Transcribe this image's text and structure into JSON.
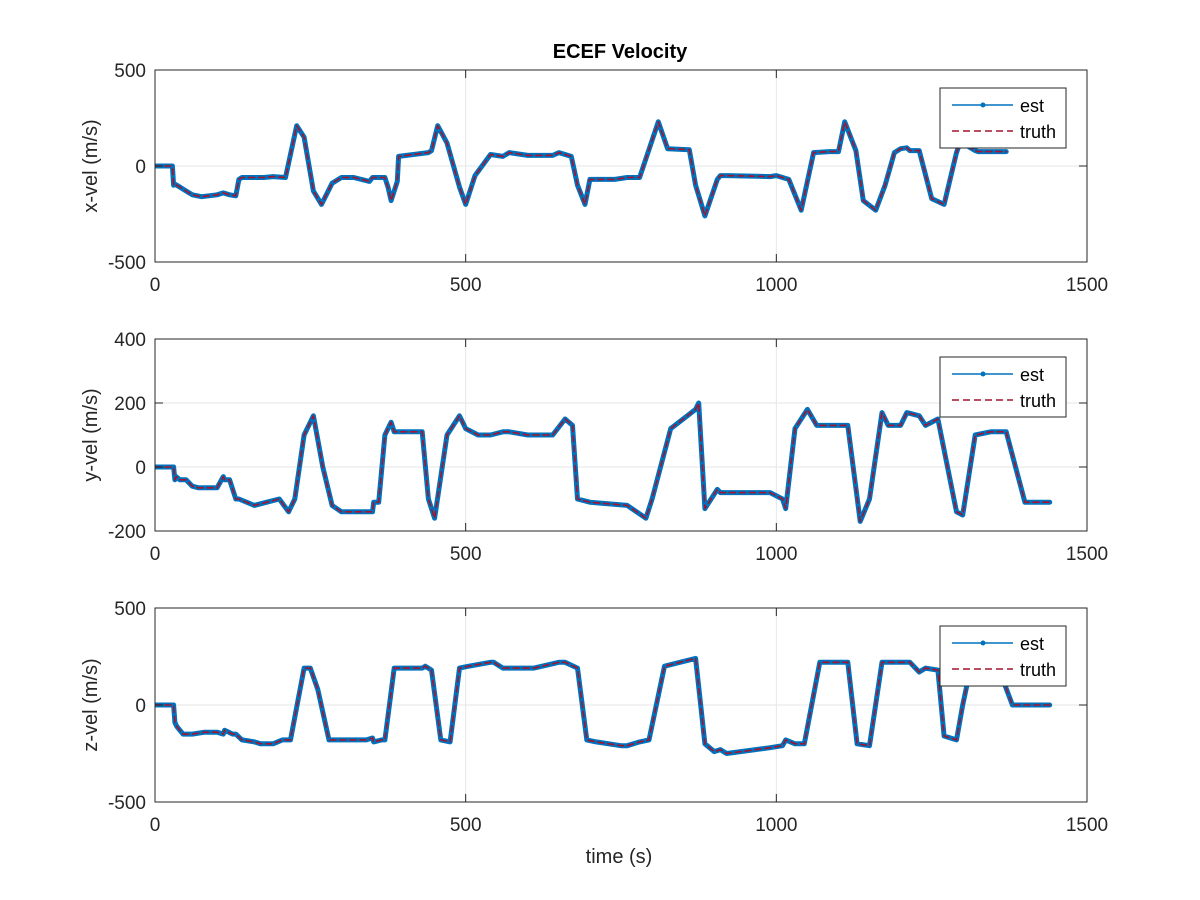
{
  "figure_title": "ECEF Velocity",
  "legend": {
    "est": "est",
    "truth": "truth"
  },
  "colors": {
    "est": "#0072BD",
    "truth": "#A2142F",
    "axis": "#262626",
    "grid": "#e6e6e6"
  },
  "chart_data": [
    {
      "type": "line",
      "title": "ECEF Velocity",
      "xlabel": "",
      "ylabel": "x-vel (m/s)",
      "xlim": [
        0,
        1500
      ],
      "ylim": [
        -500,
        500
      ],
      "xticks": [
        0,
        500,
        1000,
        1500
      ],
      "yticks": [
        -500,
        0,
        500
      ],
      "grid": true,
      "legend_position": "top-right",
      "series": [
        {
          "name": "est",
          "x": [
            0,
            28,
            30,
            32,
            40,
            50,
            60,
            75,
            100,
            110,
            120,
            130,
            135,
            140,
            175,
            190,
            210,
            228,
            240,
            255,
            268,
            285,
            300,
            320,
            345,
            350,
            370,
            375,
            380,
            390,
            392,
            440,
            445,
            455,
            470,
            490,
            500,
            515,
            540,
            560,
            570,
            600,
            640,
            650,
            660,
            670,
            680,
            692,
            700,
            740,
            760,
            780,
            810,
            825,
            860,
            870,
            885,
            905,
            910,
            920,
            990,
            1000,
            1010,
            1020,
            1040,
            1060,
            1085,
            1100,
            1110,
            1128,
            1140,
            1160,
            1175,
            1190,
            1200,
            1210,
            1215,
            1230,
            1250,
            1270,
            1290,
            1300,
            1310,
            1320,
            1325,
            1370
          ],
          "y": [
            0,
            0,
            -100,
            -95,
            -110,
            -130,
            -150,
            -160,
            -150,
            -140,
            -150,
            -155,
            -70,
            -60,
            -60,
            -55,
            -60,
            210,
            150,
            -130,
            -200,
            -90,
            -60,
            -60,
            -80,
            -60,
            -60,
            -110,
            -180,
            -80,
            50,
            70,
            80,
            210,
            120,
            -110,
            -200,
            -50,
            60,
            50,
            70,
            55,
            55,
            70,
            60,
            50,
            -100,
            -200,
            -70,
            -70,
            -60,
            -60,
            230,
            90,
            85,
            -100,
            -260,
            -70,
            -50,
            -50,
            -55,
            -50,
            -60,
            -70,
            -230,
            70,
            75,
            75,
            230,
            80,
            -180,
            -230,
            -100,
            70,
            90,
            95,
            80,
            80,
            -170,
            -200,
            70,
            160,
            100,
            80,
            75,
            75
          ]
        },
        {
          "name": "truth",
          "x": [
            0,
            28,
            30,
            32,
            40,
            50,
            60,
            75,
            100,
            110,
            120,
            130,
            135,
            140,
            175,
            190,
            210,
            228,
            240,
            255,
            268,
            285,
            300,
            320,
            345,
            350,
            370,
            375,
            380,
            390,
            392,
            440,
            445,
            455,
            470,
            490,
            500,
            515,
            540,
            560,
            570,
            600,
            640,
            650,
            660,
            670,
            680,
            692,
            700,
            740,
            760,
            780,
            810,
            825,
            860,
            870,
            885,
            905,
            910,
            920,
            990,
            1000,
            1010,
            1020,
            1040,
            1060,
            1085,
            1100,
            1110,
            1128,
            1140,
            1160,
            1175,
            1190,
            1200,
            1210,
            1215,
            1230,
            1250,
            1270,
            1290,
            1300,
            1310,
            1320,
            1325,
            1370
          ],
          "y": [
            0,
            0,
            -100,
            -95,
            -110,
            -130,
            -150,
            -160,
            -150,
            -140,
            -150,
            -155,
            -70,
            -60,
            -60,
            -55,
            -60,
            210,
            150,
            -130,
            -200,
            -90,
            -60,
            -60,
            -80,
            -60,
            -60,
            -110,
            -180,
            -80,
            50,
            70,
            80,
            210,
            120,
            -110,
            -200,
            -50,
            60,
            50,
            70,
            55,
            55,
            70,
            60,
            50,
            -100,
            -200,
            -70,
            -70,
            -60,
            -60,
            230,
            90,
            85,
            -100,
            -260,
            -70,
            -50,
            -50,
            -55,
            -50,
            -60,
            -70,
            -230,
            70,
            75,
            75,
            230,
            80,
            -180,
            -230,
            -100,
            70,
            90,
            95,
            80,
            80,
            -170,
            -200,
            70,
            160,
            100,
            80,
            75,
            75
          ]
        }
      ]
    },
    {
      "type": "line",
      "title": "",
      "xlabel": "",
      "ylabel": "y-vel (m/s)",
      "xlim": [
        0,
        1500
      ],
      "ylim": [
        -200,
        400
      ],
      "xticks": [
        0,
        500,
        1000,
        1500
      ],
      "yticks": [
        -200,
        0,
        200,
        400
      ],
      "grid": true,
      "legend_position": "top-right",
      "series": [
        {
          "name": "est",
          "x": [
            0,
            30,
            32,
            34,
            40,
            50,
            60,
            70,
            100,
            110,
            112,
            120,
            130,
            135,
            160,
            180,
            200,
            215,
            225,
            240,
            255,
            270,
            285,
            300,
            320,
            350,
            352,
            360,
            370,
            380,
            385,
            400,
            430,
            440,
            450,
            470,
            490,
            500,
            520,
            540,
            560,
            570,
            600,
            640,
            660,
            672,
            680,
            700,
            760,
            790,
            800,
            830,
            870,
            875,
            885,
            905,
            910,
            912,
            925,
            990,
            1010,
            1015,
            1030,
            1050,
            1065,
            1100,
            1115,
            1135,
            1150,
            1170,
            1180,
            1200,
            1210,
            1230,
            1240,
            1260,
            1290,
            1300,
            1320,
            1345,
            1370,
            1400,
            1440
          ],
          "y": [
            0,
            0,
            -40,
            -30,
            -40,
            -40,
            -60,
            -65,
            -65,
            -30,
            -40,
            -40,
            -100,
            -100,
            -120,
            -110,
            -100,
            -140,
            -100,
            100,
            160,
            0,
            -120,
            -140,
            -140,
            -140,
            -110,
            -110,
            100,
            140,
            110,
            110,
            110,
            -100,
            -160,
            100,
            160,
            120,
            100,
            100,
            110,
            110,
            100,
            100,
            150,
            130,
            -100,
            -110,
            -120,
            -160,
            -100,
            120,
            180,
            200,
            -130,
            -70,
            -80,
            -80,
            -80,
            -80,
            -100,
            -130,
            120,
            180,
            130,
            130,
            130,
            -170,
            -100,
            170,
            130,
            130,
            170,
            160,
            130,
            150,
            -140,
            -150,
            100,
            110,
            110,
            -110,
            -110
          ]
        },
        {
          "name": "truth",
          "x": [
            0,
            30,
            32,
            34,
            40,
            50,
            60,
            70,
            100,
            110,
            112,
            120,
            130,
            135,
            160,
            180,
            200,
            215,
            225,
            240,
            255,
            270,
            285,
            300,
            320,
            350,
            352,
            360,
            370,
            380,
            385,
            400,
            430,
            440,
            450,
            470,
            490,
            500,
            520,
            540,
            560,
            570,
            600,
            640,
            660,
            672,
            680,
            700,
            760,
            790,
            800,
            830,
            870,
            875,
            885,
            905,
            910,
            912,
            925,
            990,
            1010,
            1015,
            1030,
            1050,
            1065,
            1100,
            1115,
            1135,
            1150,
            1170,
            1180,
            1200,
            1210,
            1230,
            1240,
            1260,
            1290,
            1300,
            1320,
            1345,
            1370,
            1400,
            1440
          ],
          "y": [
            0,
            0,
            -40,
            -30,
            -40,
            -40,
            -60,
            -65,
            -65,
            -30,
            -40,
            -40,
            -100,
            -100,
            -120,
            -110,
            -100,
            -140,
            -100,
            100,
            160,
            0,
            -120,
            -140,
            -140,
            -140,
            -110,
            -110,
            100,
            140,
            110,
            110,
            110,
            -100,
            -160,
            100,
            160,
            120,
            100,
            100,
            110,
            110,
            100,
            100,
            150,
            130,
            -100,
            -110,
            -120,
            -160,
            -100,
            120,
            180,
            200,
            -130,
            -70,
            -80,
            -80,
            -80,
            -80,
            -100,
            -130,
            120,
            180,
            130,
            130,
            130,
            -170,
            -100,
            170,
            130,
            130,
            170,
            160,
            130,
            150,
            -140,
            -150,
            100,
            110,
            110,
            -110,
            -110
          ]
        }
      ]
    },
    {
      "type": "line",
      "title": "",
      "xlabel": "time (s)",
      "ylabel": "z-vel (m/s)",
      "xlim": [
        0,
        1500
      ],
      "ylim": [
        -500,
        500
      ],
      "xticks": [
        0,
        500,
        1000,
        1500
      ],
      "yticks": [
        -500,
        0,
        500
      ],
      "grid": true,
      "legend_position": "top-right",
      "series": [
        {
          "name": "est",
          "x": [
            0,
            30,
            32,
            35,
            45,
            60,
            80,
            100,
            110,
            112,
            125,
            130,
            140,
            160,
            170,
            190,
            205,
            218,
            240,
            250,
            262,
            280,
            300,
            340,
            350,
            352,
            365,
            370,
            385,
            400,
            430,
            435,
            445,
            460,
            475,
            490,
            505,
            540,
            545,
            560,
            610,
            650,
            660,
            680,
            695,
            710,
            750,
            760,
            780,
            795,
            820,
            845,
            870,
            885,
            900,
            910,
            920,
            990,
            1010,
            1015,
            1030,
            1045,
            1070,
            1100,
            1115,
            1130,
            1150,
            1170,
            1190,
            1215,
            1230,
            1240,
            1260,
            1270,
            1290,
            1300,
            1310,
            1330,
            1360,
            1380,
            1440
          ],
          "y": [
            0,
            0,
            -90,
            -110,
            -150,
            -150,
            -140,
            -140,
            -150,
            -130,
            -150,
            -150,
            -180,
            -190,
            -200,
            -200,
            -180,
            -180,
            190,
            190,
            80,
            -180,
            -180,
            -180,
            -170,
            -190,
            -180,
            -180,
            190,
            190,
            190,
            200,
            180,
            -180,
            -190,
            190,
            200,
            220,
            220,
            190,
            190,
            220,
            220,
            190,
            -180,
            -190,
            -210,
            -210,
            -190,
            -180,
            200,
            220,
            240,
            -200,
            -240,
            -230,
            -250,
            -220,
            -210,
            -180,
            -200,
            -200,
            220,
            220,
            220,
            -200,
            -210,
            220,
            220,
            220,
            170,
            190,
            180,
            -160,
            -180,
            0,
            150,
            190,
            170,
            0,
            0
          ]
        },
        {
          "name": "truth",
          "x": [
            0,
            30,
            32,
            35,
            45,
            60,
            80,
            100,
            110,
            112,
            125,
            130,
            140,
            160,
            170,
            190,
            205,
            218,
            240,
            250,
            262,
            280,
            300,
            340,
            350,
            352,
            365,
            370,
            385,
            400,
            430,
            435,
            445,
            460,
            475,
            490,
            505,
            540,
            545,
            560,
            610,
            650,
            660,
            680,
            695,
            710,
            750,
            760,
            780,
            795,
            820,
            845,
            870,
            885,
            900,
            910,
            920,
            990,
            1010,
            1015,
            1030,
            1045,
            1070,
            1100,
            1115,
            1130,
            1150,
            1170,
            1190,
            1215,
            1230,
            1240,
            1260,
            1270,
            1290,
            1300,
            1310,
            1330,
            1360,
            1380,
            1440
          ],
          "y": [
            0,
            0,
            -90,
            -110,
            -150,
            -150,
            -140,
            -140,
            -150,
            -130,
            -150,
            -150,
            -180,
            -190,
            -200,
            -200,
            -180,
            -180,
            190,
            190,
            80,
            -180,
            -180,
            -180,
            -170,
            -190,
            -180,
            -180,
            190,
            190,
            190,
            200,
            180,
            -180,
            -190,
            190,
            200,
            220,
            220,
            190,
            190,
            220,
            220,
            190,
            -180,
            -190,
            -210,
            -210,
            -190,
            -180,
            200,
            220,
            240,
            -200,
            -240,
            -230,
            -250,
            -220,
            -210,
            -180,
            -200,
            -200,
            220,
            220,
            220,
            -200,
            -210,
            220,
            220,
            220,
            170,
            190,
            180,
            -160,
            -180,
            0,
            150,
            190,
            170,
            0,
            0
          ]
        }
      ]
    }
  ]
}
